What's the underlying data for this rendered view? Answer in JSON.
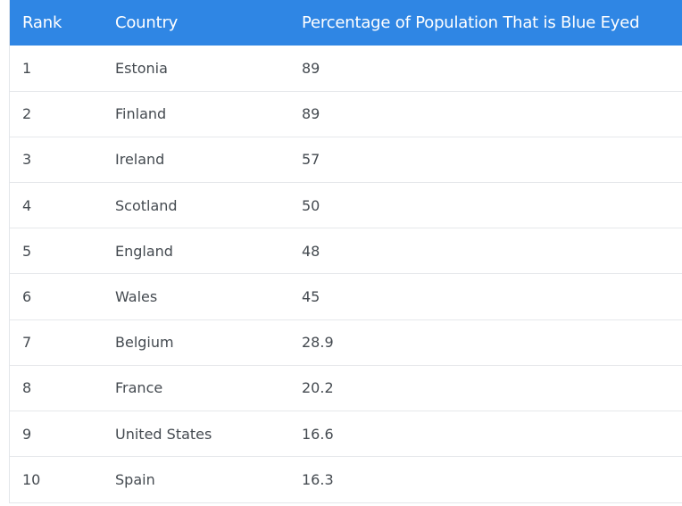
{
  "table": {
    "header": {
      "rank": "Rank",
      "country": "Country",
      "percent": "Percentage of Population That is Blue Eyed"
    },
    "rows": [
      {
        "rank": "1",
        "country": "Estonia",
        "percent": "89"
      },
      {
        "rank": "2",
        "country": "Finland",
        "percent": "89"
      },
      {
        "rank": "3",
        "country": "Ireland",
        "percent": "57"
      },
      {
        "rank": "4",
        "country": "Scotland",
        "percent": "50"
      },
      {
        "rank": "5",
        "country": "England",
        "percent": "48"
      },
      {
        "rank": "6",
        "country": "Wales",
        "percent": "45"
      },
      {
        "rank": "7",
        "country": "Belgium",
        "percent": "28.9"
      },
      {
        "rank": "8",
        "country": "France",
        "percent": "20.2"
      },
      {
        "rank": "9",
        "country": "United States",
        "percent": "16.6"
      },
      {
        "rank": "10",
        "country": "Spain",
        "percent": "16.3"
      }
    ]
  },
  "colors": {
    "header_bg": "#2f86e4",
    "header_text": "#ffffff",
    "row_text": "#444a50",
    "row_divider": "#e6e8eb"
  }
}
